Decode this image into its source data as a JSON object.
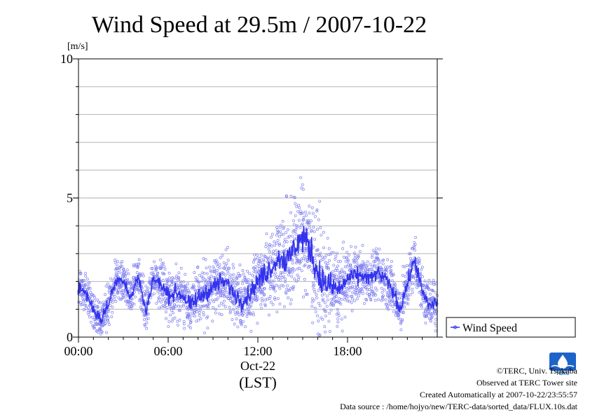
{
  "chart_data": {
    "type": "scatter",
    "title": "Wind Speed at 29.5m / 2007-10-22",
    "ylabel": "[m/s]",
    "ylim": [
      0,
      10
    ],
    "yticks": [
      "0",
      "5",
      "10"
    ],
    "xlim": [
      "00:00",
      "24:00"
    ],
    "xticks": [
      "00:00",
      "06:00",
      "12:00",
      "18:00"
    ],
    "xsub": "Oct-22",
    "xlabel": "(LST)",
    "grid": true,
    "legend_position": "right-bottom",
    "series": [
      {
        "name": "Wind Speed",
        "color": "#3333ee",
        "point_color": "#8080f0",
        "mean_hourly": [
          {
            "t": 0.0,
            "v": 1.8
          },
          {
            "t": 0.5,
            "v": 1.6
          },
          {
            "t": 1.0,
            "v": 1.0
          },
          {
            "t": 1.5,
            "v": 0.6
          },
          {
            "t": 2.0,
            "v": 1.2
          },
          {
            "t": 2.5,
            "v": 2.0
          },
          {
            "t": 3.0,
            "v": 2.1
          },
          {
            "t": 3.5,
            "v": 1.4
          },
          {
            "t": 4.0,
            "v": 2.2
          },
          {
            "t": 4.5,
            "v": 0.9
          },
          {
            "t": 5.0,
            "v": 2.1
          },
          {
            "t": 5.5,
            "v": 1.9
          },
          {
            "t": 6.0,
            "v": 1.5
          },
          {
            "t": 6.5,
            "v": 1.6
          },
          {
            "t": 7.0,
            "v": 1.5
          },
          {
            "t": 7.5,
            "v": 1.1
          },
          {
            "t": 8.0,
            "v": 1.4
          },
          {
            "t": 8.5,
            "v": 1.6
          },
          {
            "t": 9.0,
            "v": 1.8
          },
          {
            "t": 9.5,
            "v": 2.0
          },
          {
            "t": 10.0,
            "v": 1.9
          },
          {
            "t": 10.5,
            "v": 1.5
          },
          {
            "t": 11.0,
            "v": 1.3
          },
          {
            "t": 11.5,
            "v": 1.6
          },
          {
            "t": 12.0,
            "v": 2.0
          },
          {
            "t": 12.5,
            "v": 2.3
          },
          {
            "t": 13.0,
            "v": 2.6
          },
          {
            "t": 13.5,
            "v": 2.9
          },
          {
            "t": 14.0,
            "v": 2.7
          },
          {
            "t": 14.5,
            "v": 3.3
          },
          {
            "t": 15.0,
            "v": 3.6
          },
          {
            "t": 15.5,
            "v": 3.2
          },
          {
            "t": 16.0,
            "v": 2.3
          },
          {
            "t": 16.5,
            "v": 1.9
          },
          {
            "t": 17.0,
            "v": 1.8
          },
          {
            "t": 17.5,
            "v": 1.7
          },
          {
            "t": 18.0,
            "v": 2.1
          },
          {
            "t": 18.5,
            "v": 2.2
          },
          {
            "t": 19.0,
            "v": 2.2
          },
          {
            "t": 19.5,
            "v": 2.1
          },
          {
            "t": 20.0,
            "v": 2.3
          },
          {
            "t": 20.5,
            "v": 2.1
          },
          {
            "t": 21.0,
            "v": 1.7
          },
          {
            "t": 21.5,
            "v": 1.0
          },
          {
            "t": 22.0,
            "v": 1.9
          },
          {
            "t": 22.5,
            "v": 2.8
          },
          {
            "t": 23.0,
            "v": 1.6
          },
          {
            "t": 23.5,
            "v": 1.1
          },
          {
            "t": 24.0,
            "v": 1.3
          }
        ],
        "spread_hourly": [
          0.5,
          0.5,
          0.5,
          0.5,
          0.5,
          0.5,
          0.6,
          0.6,
          0.7,
          0.7,
          0.7,
          0.7,
          0.8,
          1.0,
          1.2,
          1.3,
          1.4,
          1.0,
          0.7,
          0.6,
          0.6,
          0.6,
          0.6,
          0.6,
          0.6
        ]
      }
    ]
  },
  "credits": {
    "copyright": "©TERC, Univ. Tsukuba",
    "observed": "Observed at TERC Tower site",
    "created": "Created Automatically at 2007-10-22/23:55:57",
    "source": "Data source : /home/hojyo/new/TERC-data/sorted_data/FLUX.10s.dat"
  },
  "logo": {
    "text": "TERC",
    "color": "#1e64c8"
  }
}
